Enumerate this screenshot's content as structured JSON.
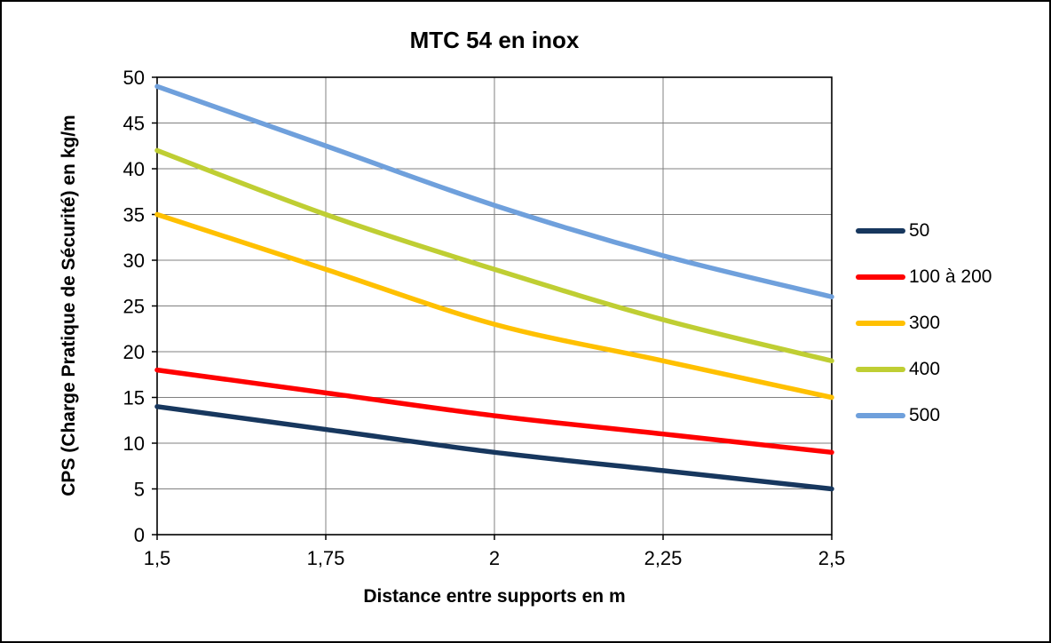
{
  "chart_data": {
    "type": "line",
    "title": "MTC 54 en inox",
    "xlabel": "Distance entre supports en m",
    "ylabel": "CPS (Charge Pratique de Sécurité) en kg/m",
    "x": [
      1.5,
      1.75,
      2,
      2.25,
      2.5
    ],
    "x_tick_labels": [
      "1,5",
      "1,75",
      "2",
      "2,25",
      "2,5"
    ],
    "y_ticks": [
      0,
      5,
      10,
      15,
      20,
      25,
      30,
      35,
      40,
      45,
      50
    ],
    "xlim": [
      1.5,
      2.5
    ],
    "ylim": [
      0,
      50
    ],
    "grid": true,
    "legend_position": "right",
    "grid_color": "#808080",
    "axis_color": "#000000",
    "series": [
      {
        "name": "50",
        "color": "#17375E",
        "values": [
          14,
          11.5,
          9,
          7,
          5
        ]
      },
      {
        "name": "100 à 200",
        "color": "#FF0000",
        "values": [
          18,
          15.5,
          13,
          11,
          9
        ]
      },
      {
        "name": "300",
        "color": "#FFC000",
        "values": [
          35,
          29,
          23,
          19,
          15
        ]
      },
      {
        "name": "400",
        "color": "#BFCE33",
        "values": [
          42,
          35,
          29,
          23.5,
          19
        ]
      },
      {
        "name": "500",
        "color": "#6FA0DC",
        "values": [
          49,
          42.5,
          36,
          30.5,
          26
        ]
      }
    ]
  }
}
